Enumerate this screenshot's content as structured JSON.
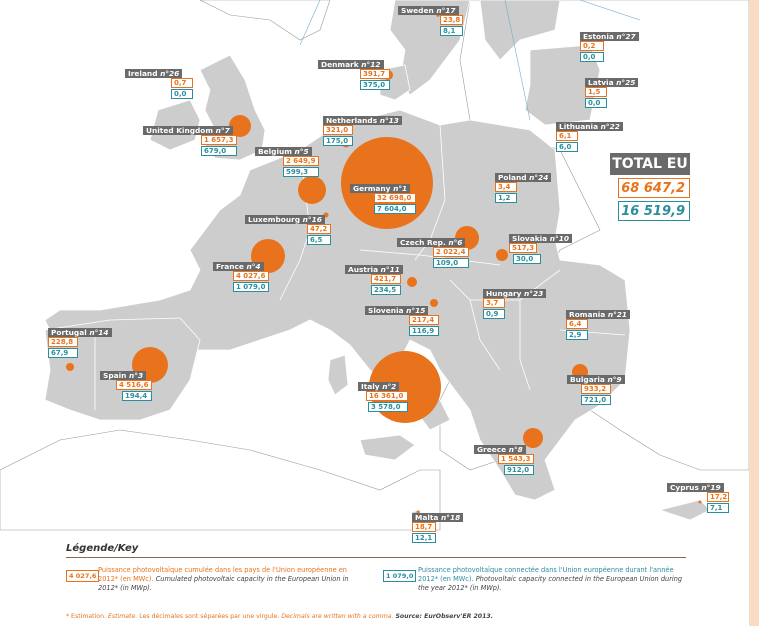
{
  "total": {
    "title": "TOTAL EU",
    "cumulated": "68 647,2",
    "connected": "16 519,9"
  },
  "countries": [
    {
      "name": "Sweden",
      "rank": "n°17",
      "cumulated": "23,8",
      "connected": "8,1"
    },
    {
      "name": "Estonia",
      "rank": "n°27",
      "cumulated": "0,2",
      "connected": "0,0"
    },
    {
      "name": "Ireland",
      "rank": "n°26",
      "cumulated": "0,7",
      "connected": "0,0"
    },
    {
      "name": "Denmark",
      "rank": "n°12",
      "cumulated": "391,7",
      "connected": "375,0"
    },
    {
      "name": "Latvia",
      "rank": "n°25",
      "cumulated": "1,5",
      "connected": "0,0"
    },
    {
      "name": "Netherlands",
      "rank": "n°13",
      "cumulated": "321,0",
      "connected": "175,0"
    },
    {
      "name": "Lithuania",
      "rank": "n°22",
      "cumulated": "6,1",
      "connected": "6,0"
    },
    {
      "name": "United Kingdom",
      "rank": "n°7",
      "cumulated": "1 657,3",
      "connected": "679,0"
    },
    {
      "name": "Belgium",
      "rank": "n°5",
      "cumulated": "2 649,9",
      "connected": "599,3"
    },
    {
      "name": "Germany",
      "rank": "n°1",
      "cumulated": "32 698,0",
      "connected": "7 604,0"
    },
    {
      "name": "Poland",
      "rank": "n°24",
      "cumulated": "3,4",
      "connected": "1,2"
    },
    {
      "name": "Luxembourg",
      "rank": "n°16",
      "cumulated": "47,2",
      "connected": "6,5"
    },
    {
      "name": "Czech Rep.",
      "rank": "n°6",
      "cumulated": "2 022,4",
      "connected": "109,0"
    },
    {
      "name": "Slovakia",
      "rank": "n°10",
      "cumulated": "517,3",
      "connected": "30,0"
    },
    {
      "name": "France",
      "rank": "n°4",
      "cumulated": "4 027,6",
      "connected": "1 079,0"
    },
    {
      "name": "Austria",
      "rank": "n°11",
      "cumulated": "421,7",
      "connected": "234,5"
    },
    {
      "name": "Hungary",
      "rank": "n°23",
      "cumulated": "3,7",
      "connected": "0,9"
    },
    {
      "name": "Slovenia",
      "rank": "n°15",
      "cumulated": "217,4",
      "connected": "116,9"
    },
    {
      "name": "Romania",
      "rank": "n°21",
      "cumulated": "6,4",
      "connected": "2,9"
    },
    {
      "name": "Portugal",
      "rank": "n°14",
      "cumulated": "228,8",
      "connected": "67,9"
    },
    {
      "name": "Spain",
      "rank": "n°3",
      "cumulated": "4 516,6",
      "connected": "194,4"
    },
    {
      "name": "Italy",
      "rank": "n°2",
      "cumulated": "16 361,0",
      "connected": "3 578,0"
    },
    {
      "name": "Bulgaria",
      "rank": "n°9",
      "cumulated": "933,2",
      "connected": "721,0"
    },
    {
      "name": "Greece",
      "rank": "n°8",
      "cumulated": "1 543,3",
      "connected": "912,0"
    },
    {
      "name": "Cyprus",
      "rank": "n°19",
      "cumulated": "17,2",
      "connected": "7,1"
    },
    {
      "name": "Malta",
      "rank": "n°18",
      "cumulated": "18,7",
      "connected": "12,1"
    }
  ],
  "legend": {
    "title": "Légende/Key",
    "cumulated_sample": "4 027,6",
    "cumulated_text_fr": "Puissance photovoltaïque cumulée dans les pays de l'Union européenne en 2012* (en MWc).",
    "cumulated_text_en": "Cumulated photovoltaic capacity in the European Union in 2012* (in MWp).",
    "connected_sample": "1 079,0",
    "connected_text_fr": "Puissance photovoltaïque connectée dans l'Union européenne durant l'année 2012* (en MWc).",
    "connected_text_en": "Photovoltaic capacity connected in the European Union during the year 2012* (in MWp)."
  },
  "footnote": {
    "fr1": "* Estimation.",
    "en1": "Estimate.",
    "fr2": "Les décimales sont séparées par une virgule.",
    "en2": "Decimals are written with a comma.",
    "source": "Source: EurObserv'ER 2013."
  },
  "colors": {
    "land_eu": "#cdcdcd",
    "land_other": "#ffffff",
    "bubble": "#e8731c",
    "cumulated": "#e8731c",
    "connected": "#2a8e9c",
    "label_bg": "#6a6a6a"
  }
}
